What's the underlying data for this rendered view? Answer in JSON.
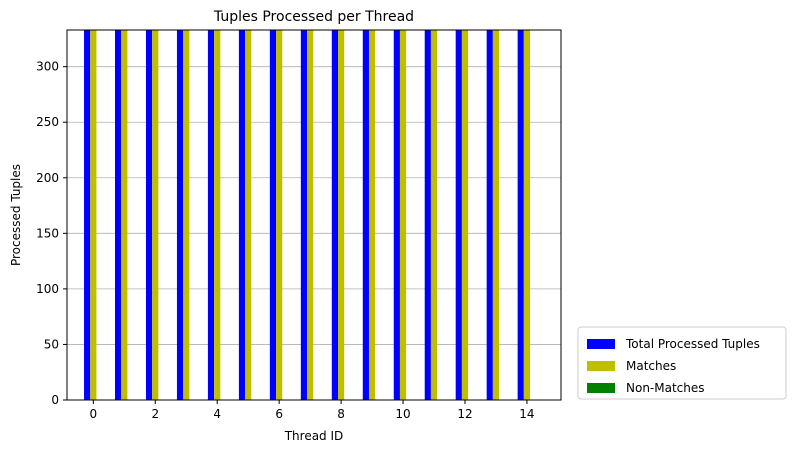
{
  "chart_data": {
    "type": "bar",
    "title": "Tuples Processed per Thread",
    "xlabel": "Thread ID",
    "ylabel": "Processed Tuples",
    "categories": [
      0,
      1,
      2,
      3,
      4,
      5,
      6,
      7,
      8,
      9,
      10,
      11,
      12,
      13,
      14
    ],
    "x_ticks": [
      0,
      2,
      4,
      6,
      8,
      10,
      12,
      14
    ],
    "y_ticks": [
      0,
      50,
      100,
      150,
      200,
      250,
      300
    ],
    "xlim": [
      -0.85,
      15.1
    ],
    "ylim": [
      0,
      333
    ],
    "grid": "y",
    "legend_position": "outside-lower-right",
    "series": [
      {
        "name": "Total Processed Tuples",
        "color": "#0000ff",
        "values": [
          333,
          333,
          333,
          333,
          333,
          333,
          333,
          333,
          333,
          333,
          333,
          333,
          333,
          333,
          333
        ]
      },
      {
        "name": "Matches",
        "color": "#bfbf00",
        "values": [
          333,
          333,
          333,
          333,
          333,
          333,
          333,
          333,
          333,
          333,
          333,
          333,
          333,
          333,
          333
        ]
      },
      {
        "name": "Non-Matches",
        "color": "#008000",
        "values": [
          0,
          0,
          0,
          0,
          0,
          0,
          0,
          0,
          0,
          0,
          0,
          0,
          0,
          0,
          0
        ]
      }
    ]
  }
}
